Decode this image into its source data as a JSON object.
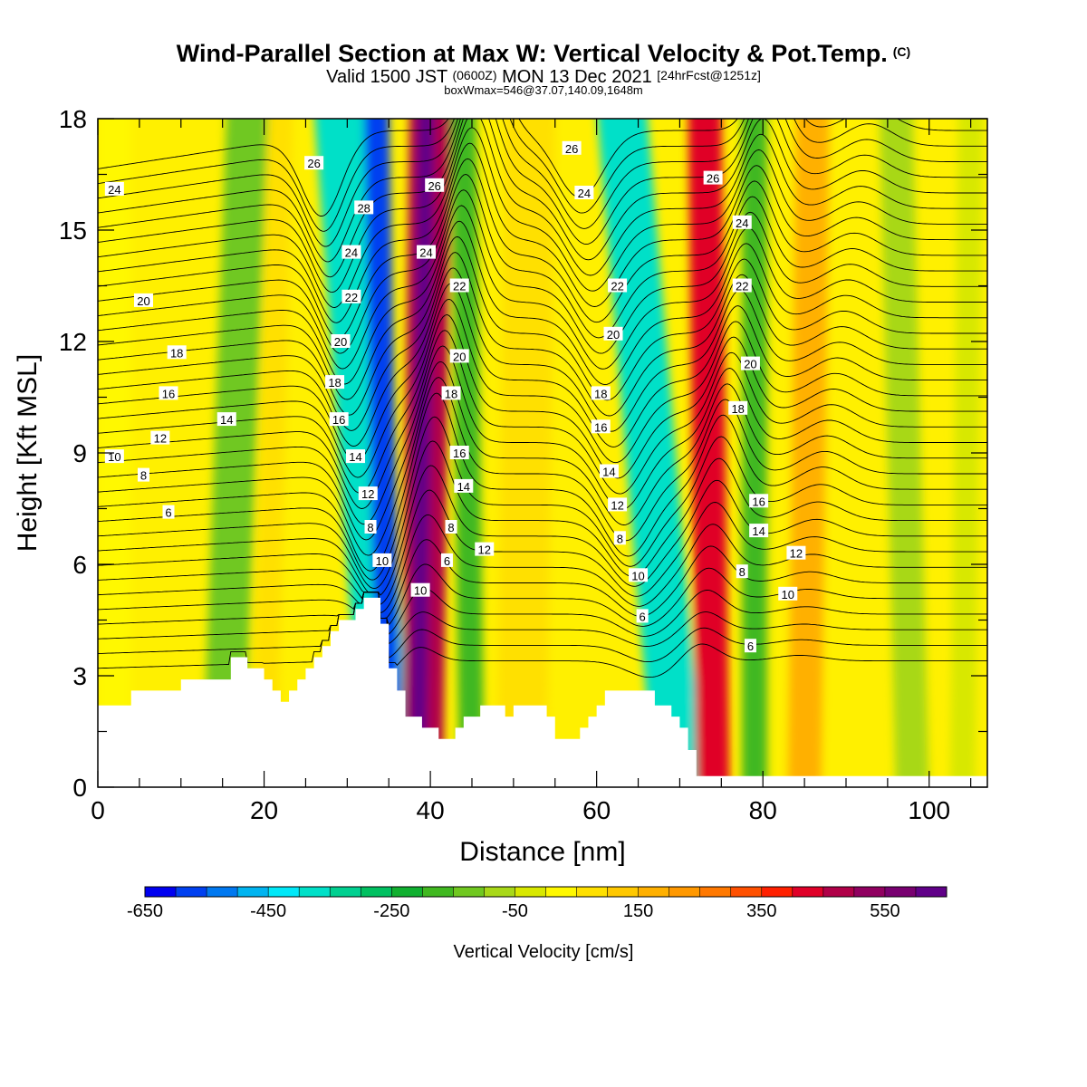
{
  "header": {
    "title": "Wind-Parallel Section at Max W: Vertical Velocity & Pot.Temp.",
    "title_mark": "(C)",
    "valid_a": "Valid 1500 JST",
    "valid_b": "(0600Z)",
    "valid_c": "MON 13 Dec 2021",
    "valid_d": "[24hrFcst@1251z]",
    "subtitle": "boxWmax=546@37.07,140.09,1648m"
  },
  "chart_data": {
    "type": "heatmap",
    "xlabel": "Distance [nm]",
    "ylabel": "Height [Kft MSL]",
    "xlim": [
      0,
      107
    ],
    "ylim": [
      0,
      18
    ],
    "x_ticks": [
      0,
      20,
      40,
      60,
      80,
      100
    ],
    "y_ticks": [
      0,
      3,
      6,
      9,
      12,
      15,
      18
    ],
    "colorbar": {
      "label": "Vertical Velocity [cm/s]",
      "min": -650,
      "max": 650,
      "tick_labels": [
        "-650",
        "-450",
        "-250",
        "-50",
        "150",
        "350",
        "550"
      ],
      "colors": [
        "#0000f0",
        "#0040f0",
        "#0078f0",
        "#00b4f0",
        "#00e8f8",
        "#00e0c8",
        "#00d090",
        "#00c060",
        "#10b030",
        "#40b820",
        "#70c820",
        "#a8d818",
        "#d8e800",
        "#fff800",
        "#ffe000",
        "#ffc800",
        "#ffb000",
        "#ff9800",
        "#ff7800",
        "#ff5000",
        "#ff2000",
        "#e00028",
        "#b00048",
        "#900060",
        "#780070",
        "#600088"
      ]
    },
    "vertical_velocity_bands": [
      {
        "x_top": 2,
        "x_bottom": 2,
        "width": 4,
        "w": 0
      },
      {
        "x_top": 18,
        "x_bottom": 15,
        "width": 5,
        "w": -150
      },
      {
        "x_top": 22,
        "x_bottom": 20,
        "width": 3,
        "w": 50
      },
      {
        "x_top": 29,
        "x_bottom": 35,
        "width": 6,
        "w": -400
      },
      {
        "x_top": 33.5,
        "x_bottom": 35,
        "width": 3,
        "w": -600
      },
      {
        "x_top": 40,
        "x_bottom": 39,
        "width": 5,
        "w": 450
      },
      {
        "x_top": 39.5,
        "x_bottom": 38.5,
        "width": 2,
        "w": 600
      },
      {
        "x_top": 44,
        "x_bottom": 45,
        "width": 3,
        "w": -200
      },
      {
        "x_top": 52,
        "x_bottom": 51,
        "width": 6,
        "w": 100
      },
      {
        "x_top": 63,
        "x_bottom": 70,
        "width": 6,
        "w": -400
      },
      {
        "x_top": 73,
        "x_bottom": 74,
        "width": 4,
        "w": 400
      },
      {
        "x_top": 79,
        "x_bottom": 79,
        "width": 3,
        "w": -200
      },
      {
        "x_top": 86,
        "x_bottom": 85,
        "width": 4,
        "w": 150
      },
      {
        "x_top": 96,
        "x_bottom": 98,
        "width": 4,
        "w": -100
      },
      {
        "x_top": 105,
        "x_bottom": 104,
        "width": 3,
        "w": -50
      }
    ],
    "terrain": [
      [
        0,
        2.2
      ],
      [
        4,
        2.2
      ],
      [
        4,
        2.6
      ],
      [
        10,
        2.6
      ],
      [
        10,
        2.9
      ],
      [
        16,
        2.9
      ],
      [
        16,
        3.5
      ],
      [
        18,
        3.5
      ],
      [
        18,
        3.2
      ],
      [
        20,
        3.2
      ],
      [
        20,
        2.9
      ],
      [
        21,
        2.9
      ],
      [
        21,
        2.6
      ],
      [
        22,
        2.6
      ],
      [
        22,
        2.3
      ],
      [
        23,
        2.3
      ],
      [
        23,
        2.6
      ],
      [
        24,
        2.6
      ],
      [
        24,
        2.9
      ],
      [
        25,
        2.9
      ],
      [
        25,
        3.2
      ],
      [
        26,
        3.2
      ],
      [
        26,
        3.5
      ],
      [
        27,
        3.5
      ],
      [
        27,
        3.8
      ],
      [
        28,
        3.8
      ],
      [
        28,
        4.2
      ],
      [
        29,
        4.2
      ],
      [
        29,
        4.5
      ],
      [
        31,
        4.5
      ],
      [
        31,
        4.8
      ],
      [
        32,
        4.8
      ],
      [
        32,
        5.1
      ],
      [
        34,
        5.1
      ],
      [
        34,
        4.4
      ],
      [
        35,
        4.4
      ],
      [
        35,
        3.2
      ],
      [
        36,
        3.2
      ],
      [
        36,
        2.6
      ],
      [
        37,
        2.6
      ],
      [
        37,
        1.9
      ],
      [
        39,
        1.9
      ],
      [
        39,
        1.6
      ],
      [
        41,
        1.6
      ],
      [
        41,
        1.3
      ],
      [
        43,
        1.3
      ],
      [
        43,
        1.6
      ],
      [
        44,
        1.6
      ],
      [
        44,
        1.9
      ],
      [
        46,
        1.9
      ],
      [
        46,
        2.2
      ],
      [
        49,
        2.2
      ],
      [
        49,
        1.9
      ],
      [
        50,
        1.9
      ],
      [
        50,
        2.2
      ],
      [
        54,
        2.2
      ],
      [
        54,
        1.9
      ],
      [
        55,
        1.9
      ],
      [
        55,
        1.3
      ],
      [
        58,
        1.3
      ],
      [
        58,
        1.6
      ],
      [
        59,
        1.6
      ],
      [
        59,
        1.9
      ],
      [
        60,
        1.9
      ],
      [
        60,
        2.2
      ],
      [
        61,
        2.2
      ],
      [
        61,
        2.6
      ],
      [
        67,
        2.6
      ],
      [
        67,
        2.2
      ],
      [
        69,
        2.2
      ],
      [
        69,
        1.9
      ],
      [
        70,
        1.9
      ],
      [
        70,
        1.6
      ],
      [
        71,
        1.6
      ],
      [
        71,
        1.0
      ],
      [
        72,
        1.0
      ],
      [
        72,
        0.3
      ],
      [
        107,
        0.3
      ]
    ],
    "theta_contour_labels": [
      {
        "label": "6",
        "x": 8.5,
        "y": 7.4
      },
      {
        "label": "8",
        "x": 5.5,
        "y": 8.4
      },
      {
        "label": "10",
        "x": 2,
        "y": 8.9
      },
      {
        "label": "12",
        "x": 7.5,
        "y": 9.4
      },
      {
        "label": "14",
        "x": 15.5,
        "y": 9.9
      },
      {
        "label": "16",
        "x": 8.5,
        "y": 10.6
      },
      {
        "label": "18",
        "x": 9.5,
        "y": 11.7
      },
      {
        "label": "20",
        "x": 5.5,
        "y": 13.1
      },
      {
        "label": "24",
        "x": 2,
        "y": 16.1
      },
      {
        "label": "26",
        "x": 26,
        "y": 16.8
      },
      {
        "label": "28",
        "x": 32,
        "y": 15.6
      },
      {
        "label": "24",
        "x": 30.5,
        "y": 14.4
      },
      {
        "label": "22",
        "x": 30.5,
        "y": 13.2
      },
      {
        "label": "20",
        "x": 29.2,
        "y": 12.0
      },
      {
        "label": "18",
        "x": 28.5,
        "y": 10.9
      },
      {
        "label": "16",
        "x": 29,
        "y": 9.9
      },
      {
        "label": "14",
        "x": 31,
        "y": 8.9
      },
      {
        "label": "12",
        "x": 32.5,
        "y": 7.9
      },
      {
        "label": "8",
        "x": 32.8,
        "y": 7.0
      },
      {
        "label": "10",
        "x": 34.2,
        "y": 6.1
      },
      {
        "label": "26",
        "x": 40.5,
        "y": 16.2
      },
      {
        "label": "24",
        "x": 39.5,
        "y": 14.4
      },
      {
        "label": "22",
        "x": 43.5,
        "y": 13.5
      },
      {
        "label": "20",
        "x": 43.5,
        "y": 11.6
      },
      {
        "label": "18",
        "x": 42.5,
        "y": 10.6
      },
      {
        "label": "16",
        "x": 43.5,
        "y": 9.0
      },
      {
        "label": "14",
        "x": 44,
        "y": 8.1
      },
      {
        "label": "8",
        "x": 42.5,
        "y": 7.0
      },
      {
        "label": "6",
        "x": 42,
        "y": 6.1
      },
      {
        "label": "12",
        "x": 46.5,
        "y": 6.4
      },
      {
        "label": "10",
        "x": 38.8,
        "y": 5.3
      },
      {
        "label": "26",
        "x": 57,
        "y": 17.2
      },
      {
        "label": "24",
        "x": 58.5,
        "y": 16.0
      },
      {
        "label": "22",
        "x": 62.5,
        "y": 13.5
      },
      {
        "label": "20",
        "x": 62,
        "y": 12.2
      },
      {
        "label": "18",
        "x": 60.5,
        "y": 10.6
      },
      {
        "label": "16",
        "x": 60.5,
        "y": 9.7
      },
      {
        "label": "14",
        "x": 61.5,
        "y": 8.5
      },
      {
        "label": "12",
        "x": 62.5,
        "y": 7.6
      },
      {
        "label": "8",
        "x": 62.8,
        "y": 6.7
      },
      {
        "label": "10",
        "x": 65,
        "y": 5.7
      },
      {
        "label": "6",
        "x": 65.5,
        "y": 4.6
      },
      {
        "label": "26",
        "x": 74,
        "y": 16.4
      },
      {
        "label": "24",
        "x": 77.5,
        "y": 15.2
      },
      {
        "label": "22",
        "x": 77.5,
        "y": 13.5
      },
      {
        "label": "20",
        "x": 78.5,
        "y": 11.4
      },
      {
        "label": "18",
        "x": 77,
        "y": 10.2
      },
      {
        "label": "16",
        "x": 79.5,
        "y": 7.7
      },
      {
        "label": "14",
        "x": 79.5,
        "y": 6.9
      },
      {
        "label": "8",
        "x": 77.5,
        "y": 5.8
      },
      {
        "label": "12",
        "x": 84,
        "y": 6.3
      },
      {
        "label": "10",
        "x": 83,
        "y": 5.2
      },
      {
        "label": "6",
        "x": 78.5,
        "y": 3.8
      }
    ]
  }
}
